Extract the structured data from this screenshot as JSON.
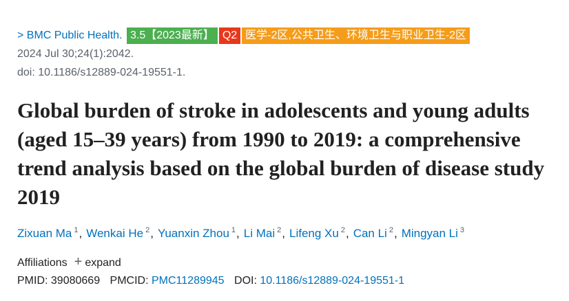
{
  "journal": {
    "name": "BMC Public Health.",
    "badges": {
      "impact": "3.5【2023最新】",
      "quartile": "Q2",
      "zone": "医学-2区,公共卫生、环境卫生与职业卫生-2区"
    },
    "date": "2024 Jul 30;24(1):2042.",
    "doi": "doi: 10.1186/s12889-024-19551-1."
  },
  "title": "Global burden of stroke in adolescents and young adults (aged 15–39 years) from 1990 to 2019: a comprehensive trend analysis based on the global burden of disease study 2019",
  "authors": [
    {
      "name": "Zixuan Ma",
      "affiliation": "1"
    },
    {
      "name": "Wenkai He",
      "affiliation": "2"
    },
    {
      "name": "Yuanxin Zhou",
      "affiliation": "1"
    },
    {
      "name": "Li Mai",
      "affiliation": "2"
    },
    {
      "name": "Lifeng Xu",
      "affiliation": "2"
    },
    {
      "name": "Can Li",
      "affiliation": "2"
    },
    {
      "name": "Mingyan Li",
      "affiliation": "3"
    }
  ],
  "affiliations": {
    "label": "Affiliations",
    "toggle": "expand"
  },
  "ids": {
    "pmid_label": "PMID:",
    "pmid": "39080669",
    "pmcid_label": "PMCID:",
    "pmcid": "PMC11289945",
    "doi_label": "DOI:",
    "doi": "10.1186/s12889-024-19551-1"
  }
}
